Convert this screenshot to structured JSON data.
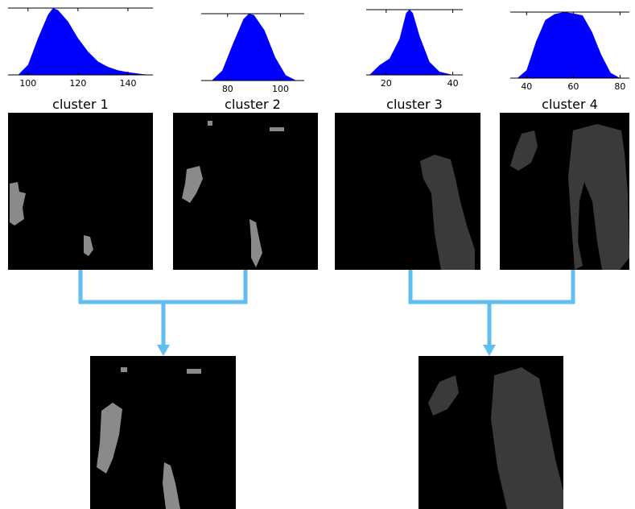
{
  "chart_data": [
    {
      "type": "area",
      "title": "cluster 1",
      "color": "#0000ff",
      "xlim": [
        92,
        150
      ],
      "ylim": [
        0,
        1
      ],
      "xticks": [
        100,
        120,
        140
      ],
      "x": [
        96,
        100,
        104,
        108,
        110,
        112,
        116,
        120,
        124,
        128,
        132,
        136,
        140,
        146,
        150
      ],
      "values": [
        0,
        0.15,
        0.55,
        0.9,
        1,
        0.97,
        0.8,
        0.55,
        0.35,
        0.2,
        0.12,
        0.07,
        0.04,
        0.01,
        0
      ]
    },
    {
      "type": "area",
      "title": "cluster 2",
      "color": "#0000ff",
      "xlim": [
        70,
        109
      ],
      "ylim": [
        0,
        1
      ],
      "xticks": [
        80,
        100
      ],
      "x": [
        74,
        78,
        82,
        86,
        88,
        90,
        94,
        98,
        102,
        106
      ],
      "values": [
        0,
        0.15,
        0.55,
        0.92,
        1,
        0.98,
        0.75,
        0.35,
        0.08,
        0
      ]
    },
    {
      "type": "area",
      "title": "cluster 3",
      "color": "#0000ff",
      "xlim": [
        14,
        43
      ],
      "ylim": [
        0,
        1
      ],
      "xticks": [
        20,
        40
      ],
      "x": [
        15,
        18,
        21,
        24,
        26,
        27,
        28,
        30,
        33,
        36,
        40
      ],
      "values": [
        0,
        0.15,
        0.25,
        0.55,
        0.95,
        1,
        0.95,
        0.6,
        0.2,
        0.05,
        0
      ]
    },
    {
      "type": "area",
      "title": "cluster 4",
      "color": "#0000ff",
      "xlim": [
        33,
        84
      ],
      "ylim": [
        0,
        1
      ],
      "xticks": [
        40,
        60,
        80
      ],
      "x": [
        36,
        40,
        44,
        48,
        52,
        56,
        60,
        64,
        68,
        72,
        76,
        80
      ],
      "values": [
        0,
        0.12,
        0.55,
        0.88,
        0.97,
        1,
        0.98,
        0.95,
        0.7,
        0.35,
        0.08,
        0
      ]
    }
  ]
}
